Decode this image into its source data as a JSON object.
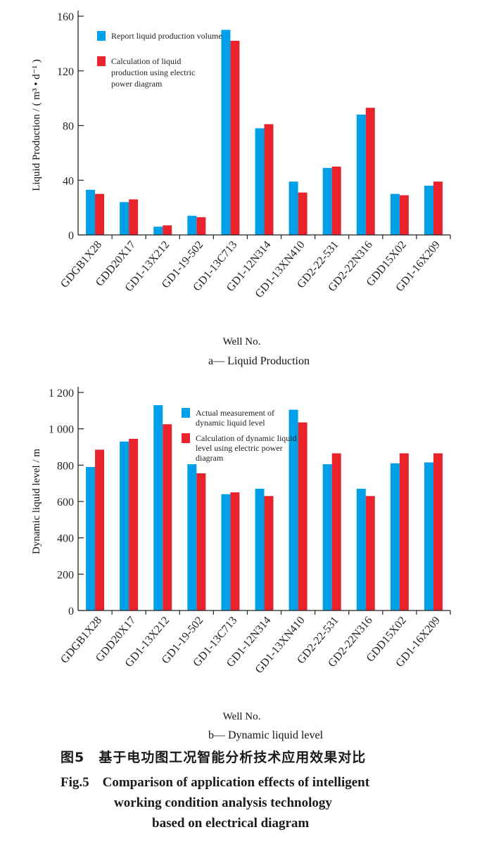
{
  "chart_data": [
    {
      "type": "bar",
      "categories": [
        "GDGB1X28",
        "GDD20X17",
        "GD1-13X212",
        "GD1-19-502",
        "GD1-13C713",
        "GD1-12N314",
        "GD1-13XN410",
        "GD2-22-531",
        "GD2-22N316",
        "GDD15X02",
        "GD1-16X209"
      ],
      "series": [
        {
          "name": "Report liquid production volume",
          "color": "#00a0e9",
          "values": [
            33,
            24,
            6,
            14,
            150,
            78,
            39,
            49,
            88,
            30,
            36
          ]
        },
        {
          "name": "Calculation of liquid production using electric power diagram",
          "color": "#e8232c",
          "values": [
            30,
            26,
            7,
            13,
            142,
            81,
            31,
            50,
            93,
            29,
            39
          ]
        }
      ],
      "legend_lines": [
        [
          "Report liquid production volume"
        ],
        [
          "Calculation of liquid",
          "production using electric",
          "power diagram"
        ]
      ],
      "ylim": [
        0,
        160
      ],
      "yticks": [
        0,
        40,
        80,
        120,
        160
      ],
      "ytick_labels": [
        "0",
        "40",
        "80",
        "120",
        "160"
      ],
      "ylabel": "Liquid Production / ( m³ • d⁻¹ )",
      "xlabel": "Well No.",
      "caption": "a— Liquid Production",
      "legend_position": "top-left"
    },
    {
      "type": "bar",
      "categories": [
        "GDGB1X28",
        "GDD20X17",
        "GD1-13X212",
        "GD1-19-502",
        "GD1-13C713",
        "GD1-12N314",
        "GD1-13XN410",
        "GD2-22-531",
        "GD2-22N316",
        "GDD15X02",
        "GD1-16X209"
      ],
      "series": [
        {
          "name": "Actual measurement of dynamic liquid level",
          "color": "#00a0e9",
          "values": [
            790,
            930,
            1130,
            805,
            640,
            670,
            1105,
            805,
            670,
            810,
            815
          ]
        },
        {
          "name": "Calculation of dynamic liquid level using electric power diagram",
          "color": "#e8232c",
          "values": [
            885,
            945,
            1025,
            755,
            650,
            630,
            1035,
            865,
            630,
            865,
            865
          ]
        }
      ],
      "legend_lines": [
        [
          "Actual measurement of",
          "dynamic liquid level"
        ],
        [
          "Calculation of dynamic liquid",
          "level using electric power",
          "diagram"
        ]
      ],
      "ylim": [
        0,
        1200
      ],
      "yticks": [
        0,
        200,
        400,
        600,
        800,
        1000,
        1200
      ],
      "ytick_labels": [
        "0",
        "200",
        "400",
        "600",
        "800",
        "1 000",
        "1 200"
      ],
      "ylabel": "Dynamic liquid level / m",
      "xlabel": "Well No.",
      "caption": "b— Dynamic liquid level",
      "legend_position": "top-left"
    }
  ],
  "figure": {
    "caption_cn": "图5　基于电功图工况智能分析技术应用效果对比",
    "caption_en_lines": [
      "Fig.5　Comparison of application effects of intelligent",
      "working condition analysis technology",
      "based on electrical diagram"
    ]
  }
}
